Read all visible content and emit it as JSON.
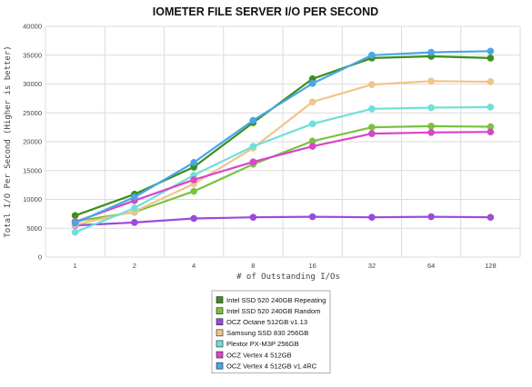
{
  "chart_data": {
    "type": "line",
    "title": "IOMETER FILE SERVER I/O PER SECOND",
    "xlabel": "# of Outstanding I/Os",
    "ylabel": "Total I/O Per Second (Higher is better)",
    "categories": [
      "1",
      "2",
      "4",
      "8",
      "16",
      "32",
      "64",
      "128"
    ],
    "ylim": [
      0,
      40000
    ],
    "yticks": [
      0,
      5000,
      10000,
      15000,
      20000,
      25000,
      30000,
      35000,
      40000
    ],
    "grid": true,
    "legend": "bottom",
    "series": [
      {
        "name": "Intel SSD 520 240GB Repeating",
        "color": "#3a8f1e",
        "values": [
          7200,
          10900,
          15600,
          23300,
          30900,
          34500,
          34800,
          34500
        ]
      },
      {
        "name": "Intel SSD 520 240GB Random",
        "color": "#7cc142",
        "values": [
          6200,
          7800,
          11400,
          16100,
          20100,
          22500,
          22700,
          22600
        ]
      },
      {
        "name": "OCZ Octane 512GB v1.13",
        "color": "#9a4bdc",
        "values": [
          5500,
          6000,
          6700,
          6900,
          7000,
          6900,
          7000,
          6900
        ]
      },
      {
        "name": "Samsung SSD 830 256GB",
        "color": "#f1c48a",
        "values": [
          5600,
          7900,
          12700,
          18900,
          26900,
          29900,
          30500,
          30400
        ]
      },
      {
        "name": "Plextor PX-M3P 256GB",
        "color": "#6ee0d9",
        "values": [
          4300,
          8500,
          14200,
          19200,
          23100,
          25700,
          25900,
          26000
        ]
      },
      {
        "name": "OCZ Vertex 4 512GB",
        "color": "#d846c9",
        "values": [
          6100,
          9800,
          13400,
          16500,
          19200,
          21400,
          21600,
          21700
        ]
      },
      {
        "name": "OCZ Vertex 4 512GB v1.4RC",
        "color": "#4aa6e6",
        "values": [
          5900,
          10400,
          16400,
          23700,
          30100,
          35000,
          35500,
          35700
        ]
      }
    ]
  }
}
